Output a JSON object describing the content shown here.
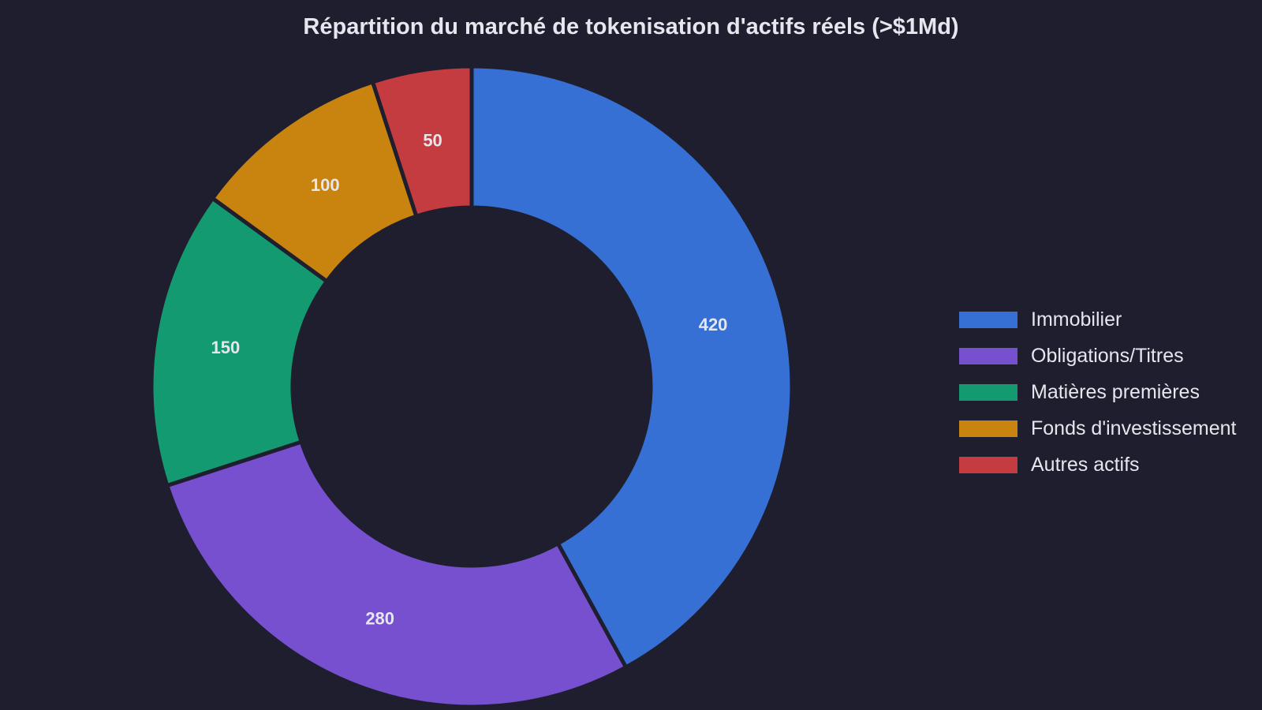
{
  "chart_data": {
    "type": "pie",
    "variant": "donut",
    "title": "Répartition du marché de tokenisation d'actifs réels (>$1Md)",
    "categories": [
      "Immobilier",
      "Obligations/Titres",
      "Matières premières",
      "Fonds d'investissement",
      "Autres actifs"
    ],
    "values": [
      420,
      280,
      150,
      100,
      50
    ],
    "colors": [
      "#3670d4",
      "#7650cf",
      "#139a70",
      "#c8840f",
      "#c53c40"
    ],
    "data_labels": [
      "420",
      "280",
      "150",
      "100",
      "50"
    ],
    "legend_position": "right",
    "start_angle": "top, clockwise"
  }
}
